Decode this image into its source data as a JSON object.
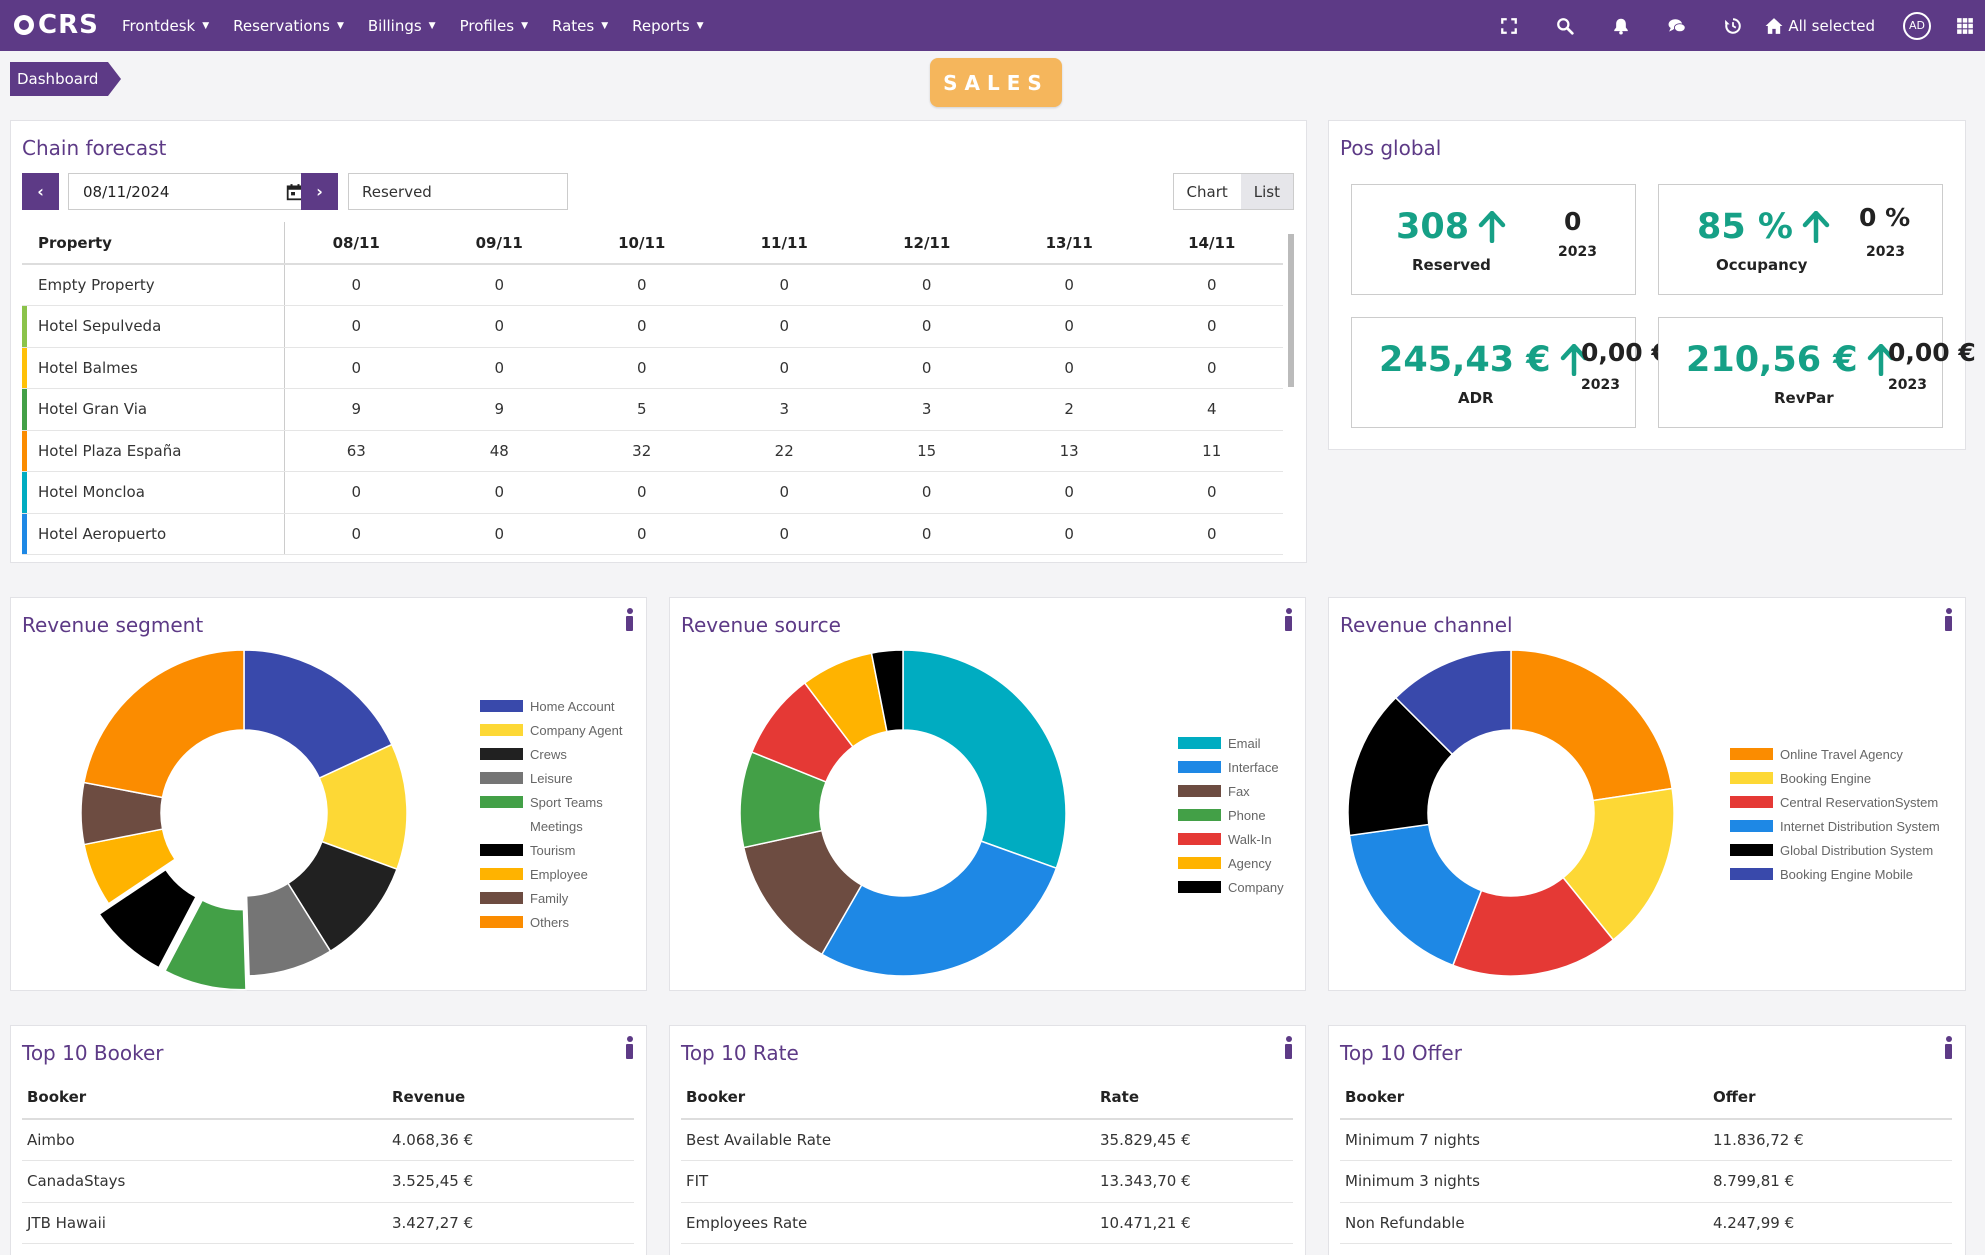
{
  "navbar": {
    "logo": "CRS",
    "menu": [
      "Frontdesk",
      "Reservations",
      "Billings",
      "Profiles",
      "Rates",
      "Reports"
    ],
    "hotel_selector": "All selected",
    "avatar": "AD"
  },
  "breadcrumb": "Dashboard",
  "badge": "SALES",
  "chain_forecast": {
    "title": "Chain forecast",
    "date": "08/11/2024",
    "status": "Reserved",
    "toggle_chart": "Chart",
    "toggle_list": "List",
    "header_property": "Property",
    "dates": [
      "08/11",
      "09/11",
      "10/11",
      "11/11",
      "12/11",
      "13/11",
      "14/11"
    ],
    "rows": [
      {
        "name": "Empty Property",
        "color": "",
        "values": [
          "0",
          "0",
          "0",
          "0",
          "0",
          "0",
          "0"
        ]
      },
      {
        "name": "Hotel Sepulveda",
        "color": "#8bc34a",
        "values": [
          "0",
          "0",
          "0",
          "0",
          "0",
          "0",
          "0"
        ]
      },
      {
        "name": "Hotel Balmes",
        "color": "#ffc107",
        "values": [
          "0",
          "0",
          "0",
          "0",
          "0",
          "0",
          "0"
        ]
      },
      {
        "name": "Hotel Gran Via",
        "color": "#43a047",
        "values": [
          "9",
          "9",
          "5",
          "3",
          "3",
          "2",
          "4"
        ]
      },
      {
        "name": "Hotel Plaza España",
        "color": "#fb8c00",
        "values": [
          "63",
          "48",
          "32",
          "22",
          "15",
          "13",
          "11"
        ]
      },
      {
        "name": "Hotel Moncloa",
        "color": "#00acc1",
        "values": [
          "0",
          "0",
          "0",
          "0",
          "0",
          "0",
          "0"
        ]
      },
      {
        "name": "Hotel Aeropuerto",
        "color": "#1e88e5",
        "values": [
          "0",
          "0",
          "0",
          "0",
          "0",
          "0",
          "0"
        ]
      }
    ]
  },
  "pos_global": {
    "title": "Pos global",
    "kpis": [
      {
        "value": "308",
        "label": "Reserved",
        "compare": "0",
        "year": "2023"
      },
      {
        "value": "85 %",
        "label": "Occupancy",
        "compare": "0 %",
        "year": "2023"
      },
      {
        "value": "245,43 €",
        "label": "ADR",
        "compare": "0,00 €",
        "year": "2023"
      },
      {
        "value": "210,56 €",
        "label": "RevPar",
        "compare": "0,00 €",
        "year": "2023"
      }
    ]
  },
  "revenue_segment": {
    "title": "Revenue segment",
    "legend": [
      {
        "name": "Home Account",
        "color": "#3949ab"
      },
      {
        "name": "Company Agent",
        "color": "#fdd835"
      },
      {
        "name": "Crews",
        "color": "#212121"
      },
      {
        "name": "Leisure",
        "color": "#757575"
      },
      {
        "name": "Sport Teams",
        "color": "#43a047"
      },
      {
        "name": "Meetings",
        "color": ""
      },
      {
        "name": "Tourism",
        "color": "#000000"
      },
      {
        "name": "Employee",
        "color": "#ffb300"
      },
      {
        "name": "Family",
        "color": "#6d4c41"
      },
      {
        "name": "Others",
        "color": "#fb8c00"
      }
    ],
    "slices": [
      {
        "color": "#3949ab",
        "pct": 18.1,
        "explode": 0
      },
      {
        "color": "#fdd835",
        "pct": 12.5,
        "explode": 0
      },
      {
        "color": "#212121",
        "pct": 10.5,
        "explode": 0
      },
      {
        "color": "#757575",
        "pct": 8.4,
        "explode": 0
      },
      {
        "color": "#43a047",
        "pct": 8.2,
        "explode": 14
      },
      {
        "color": "#000000",
        "pct": 7.9,
        "explode": 14
      },
      {
        "color": "#ffb300",
        "pct": 6.3,
        "explode": 0
      },
      {
        "color": "#6d4c41",
        "pct": 6.1,
        "explode": 0
      },
      {
        "color": "#fb8c00",
        "pct": 22.0,
        "explode": 0
      }
    ]
  },
  "revenue_source": {
    "title": "Revenue source",
    "legend": [
      {
        "name": "Email",
        "color": "#00acc1"
      },
      {
        "name": "Interface",
        "color": "#1e88e5"
      },
      {
        "name": "Fax",
        "color": "#6d4c41"
      },
      {
        "name": "Phone",
        "color": "#43a047"
      },
      {
        "name": "Walk-In",
        "color": "#e53935"
      },
      {
        "name": "Agency",
        "color": "#ffb300"
      },
      {
        "name": "Company",
        "color": "#000000"
      }
    ],
    "slices": [
      {
        "color": "#00acc1",
        "pct": 30.5,
        "explode": 0
      },
      {
        "color": "#1e88e5",
        "pct": 27.8,
        "explode": 0
      },
      {
        "color": "#6d4c41",
        "pct": 13.3,
        "explode": 0
      },
      {
        "color": "#43a047",
        "pct": 9.5,
        "explode": 0
      },
      {
        "color": "#e53935",
        "pct": 8.6,
        "explode": 0
      },
      {
        "color": "#ffb300",
        "pct": 7.2,
        "explode": 0
      },
      {
        "color": "#000000",
        "pct": 3.1,
        "explode": 0
      }
    ]
  },
  "revenue_channel": {
    "title": "Revenue channel",
    "legend": [
      {
        "name": "Online Travel Agency",
        "color": "#fb8c00"
      },
      {
        "name": "Booking Engine",
        "color": "#fdd835"
      },
      {
        "name": "Central ReservationSystem",
        "color": "#e53935"
      },
      {
        "name": "Internet Distribution System",
        "color": "#1e88e5"
      },
      {
        "name": "Global Distribution System",
        "color": "#000000"
      },
      {
        "name": "Booking Engine Mobile",
        "color": "#3949ab"
      }
    ],
    "slices": [
      {
        "color": "#fb8c00",
        "pct": 22.6,
        "explode": 0
      },
      {
        "color": "#fdd835",
        "pct": 16.6,
        "explode": 0
      },
      {
        "color": "#e53935",
        "pct": 16.6,
        "explode": 0
      },
      {
        "color": "#1e88e5",
        "pct": 17.0,
        "explode": 0
      },
      {
        "color": "#000000",
        "pct": 14.7,
        "explode": 0
      },
      {
        "color": "#3949ab",
        "pct": 12.5,
        "explode": 0
      }
    ]
  },
  "top_booker": {
    "title": "Top 10 Booker",
    "col1": "Booker",
    "col2": "Revenue",
    "rows": [
      [
        "Aimbo",
        "4.068,36 €"
      ],
      [
        "CanadaStays",
        "3.525,45 €"
      ],
      [
        "JTB Hawaii",
        "3.427,27 €"
      ]
    ]
  },
  "top_rate": {
    "title": "Top 10 Rate",
    "col1": "Booker",
    "col2": "Rate",
    "rows": [
      [
        "Best Available Rate",
        "35.829,45 €"
      ],
      [
        "FIT",
        "13.343,70 €"
      ],
      [
        "Employees Rate",
        "10.471,21 €"
      ]
    ]
  },
  "top_offer": {
    "title": "Top 10 Offer",
    "col1": "Booker",
    "col2": "Offer",
    "rows": [
      [
        "Minimum 7 nights",
        "11.836,72 €"
      ],
      [
        "Minimum 3 nights",
        "8.799,81 €"
      ],
      [
        "Non Refundable",
        "4.247,99 €"
      ]
    ]
  },
  "chart_data": [
    {
      "type": "pie",
      "title": "Revenue segment",
      "categories": [
        "Home Account",
        "Company Agent",
        "Crews",
        "Leisure",
        "Sport Teams",
        "Tourism",
        "Employee",
        "Family",
        "Others"
      ],
      "values": [
        18.1,
        12.5,
        10.5,
        8.4,
        8.2,
        7.9,
        6.3,
        6.1,
        22.0
      ],
      "legend": "right"
    },
    {
      "type": "pie",
      "title": "Revenue source",
      "categories": [
        "Email",
        "Interface",
        "Fax",
        "Phone",
        "Walk-In",
        "Agency",
        "Company"
      ],
      "values": [
        30.5,
        27.8,
        13.3,
        9.5,
        8.6,
        7.2,
        3.1
      ],
      "legend": "right"
    },
    {
      "type": "pie",
      "title": "Revenue channel",
      "categories": [
        "Online Travel Agency",
        "Booking Engine",
        "Central ReservationSystem",
        "Internet Distribution System",
        "Global Distribution System",
        "Booking Engine Mobile"
      ],
      "values": [
        22.6,
        16.6,
        16.6,
        17.0,
        14.7,
        12.5
      ],
      "legend": "right"
    }
  ]
}
